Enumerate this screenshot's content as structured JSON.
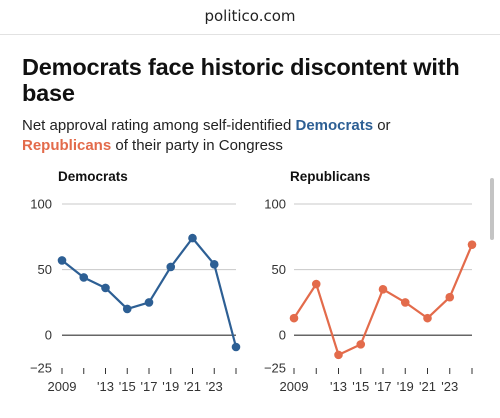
{
  "header": {
    "url": "politico.com"
  },
  "article": {
    "title": "Democrats face historic discontent with base",
    "subtitle": {
      "prefix": "Net approval rating among self-identified ",
      "democrats_word": "Democrats",
      "middle": " or ",
      "republicans_word": "Republicans",
      "suffix": " of their party in Congress"
    }
  },
  "colors": {
    "democrats": "#2d5f94",
    "republicans": "#e36b4b",
    "gridline": "#c8c8c8",
    "zeroline": "#333333"
  },
  "chart_data": [
    {
      "type": "line",
      "title": "Democrats",
      "x": [
        2009,
        2011,
        2013,
        2015,
        2017,
        2019,
        2021,
        2023,
        2025
      ],
      "x_tick_labels": [
        "2009",
        "",
        "'13",
        "'15",
        "'17",
        "'19",
        "'21",
        "'23",
        ""
      ],
      "series": [
        {
          "values": [
            57,
            44,
            36,
            20,
            25,
            52,
            74,
            54,
            -9
          ],
          "color": "#2d5f94"
        }
      ],
      "ylim": [
        -25,
        100
      ],
      "yticks": [
        -25,
        0,
        50,
        100
      ],
      "ytick_labels": [
        "−25",
        "0",
        "50",
        "100"
      ],
      "grid": true
    },
    {
      "type": "line",
      "title": "Republicans",
      "x": [
        2009,
        2011,
        2013,
        2015,
        2017,
        2019,
        2021,
        2023,
        2025
      ],
      "x_tick_labels": [
        "2009",
        "",
        "'13",
        "'15",
        "'17",
        "'19",
        "'21",
        "'23",
        ""
      ],
      "series": [
        {
          "values": [
            13,
            39,
            -15,
            -7,
            35,
            25,
            13,
            29,
            69
          ],
          "color": "#e36b4b"
        }
      ],
      "ylim": [
        -25,
        100
      ],
      "yticks": [
        -25,
        0,
        50,
        100
      ],
      "ytick_labels": [
        "−25",
        "0",
        "50",
        "100"
      ],
      "grid": true
    }
  ]
}
